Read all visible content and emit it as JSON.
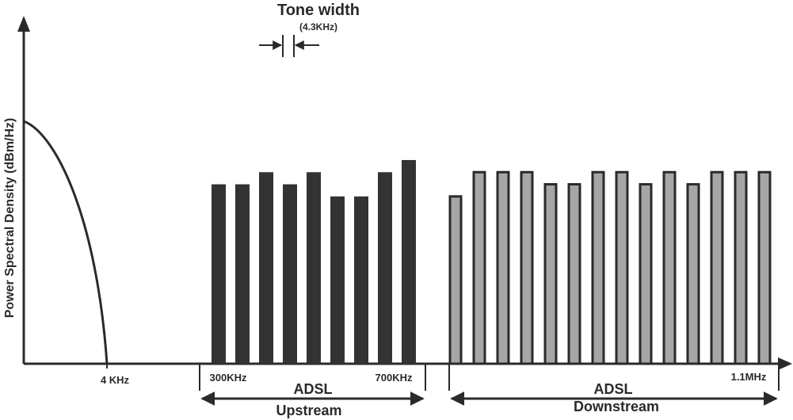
{
  "title": "Tone width",
  "tone_width_value": "(4.3KHz)",
  "y_axis_label": "Power Spectral Density (dBm/Hz)",
  "ticks": {
    "voice_end": "4 KHz",
    "upstream_start": "300KHz",
    "upstream_end": "700KHz",
    "downstream_end": "1.1MHz"
  },
  "bands": {
    "upstream": {
      "name": "ADSL",
      "direction": "Upstream"
    },
    "downstream": {
      "name": "ADSL",
      "direction": "Downstream"
    }
  },
  "colors": {
    "ink": "#2a2a2a",
    "upstream_fill": "#333333",
    "downstream_fill": "#a6a6a6"
  },
  "chart_data": {
    "type": "bar",
    "title": "Tone width",
    "ylabel": "Power Spectral Density (dBm/Hz)",
    "ylim": [
      0,
      100
    ],
    "voice_band": {
      "label": "4 KHz",
      "peak": 100
    },
    "series": [
      {
        "name": "Upstream",
        "values": [
          74,
          74,
          79,
          74,
          79,
          69,
          69,
          79,
          84
        ]
      },
      {
        "name": "Downstream",
        "values": [
          69,
          79,
          79,
          79,
          74,
          74,
          79,
          79,
          74,
          79,
          74,
          79,
          79,
          79
        ]
      }
    ]
  }
}
